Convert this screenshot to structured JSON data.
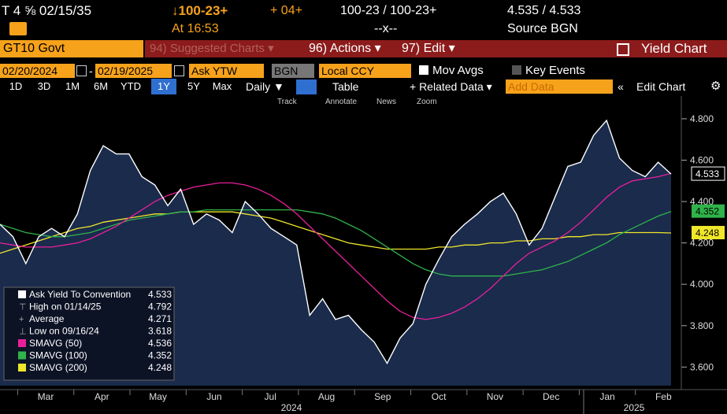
{
  "header": {
    "ticker": "T 4 ⅝ 02/15/35",
    "price_change": "↓100-23+",
    "change": "+ 04+",
    "bid_ask": "100-23 / 100-23+",
    "yield": "4.535 / 4.533",
    "time": "At 16:53",
    "spread": "--x--",
    "source": "Source BGN"
  },
  "toolbar": {
    "security": "GT10 Govt",
    "suggested": "94) Suggested Charts ▾",
    "actions": "96) Actions ▾",
    "edit": "97) Edit ▾",
    "chart_name": "Yield Chart"
  },
  "controls": {
    "start_date": "02/20/2024",
    "dash": "-",
    "end_date": "02/19/2025",
    "field": "Ask YTW",
    "source": "BGN",
    "currency": "Local CCY",
    "mov_avgs": "Mov Avgs",
    "key_events": "Key Events"
  },
  "ranges": [
    "1D",
    "3D",
    "1M",
    "6M",
    "YTD",
    "1Y",
    "5Y",
    "Max"
  ],
  "selected_range": "1Y",
  "period": "Daily ▼",
  "table": "Table",
  "related": "+ Related Data ▾",
  "add_data": "Add Data",
  "edit_chart": "Edit Chart",
  "tools": [
    "Track",
    "Annotate",
    "News",
    "Zoom"
  ],
  "chart_data": {
    "type": "line",
    "x_labels": [
      "Mar",
      "Apr",
      "May",
      "Jun",
      "Jul",
      "Aug",
      "Sep",
      "Oct",
      "Nov",
      "Dec",
      "Jan",
      "Feb"
    ],
    "year_labels": [
      "2024",
      "2025"
    ],
    "ylim": [
      3.51,
      4.91
    ],
    "yticks": [
      {
        "value": 3.6,
        "label": "3.600"
      },
      {
        "value": 3.8,
        "label": "3.800"
      },
      {
        "value": 4.0,
        "label": "4.000"
      },
      {
        "value": 4.2,
        "label": "4.200"
      },
      {
        "value": 4.4,
        "label": "4.400"
      },
      {
        "value": 4.6,
        "label": "4.600"
      },
      {
        "value": 4.8,
        "label": "4.800"
      }
    ],
    "series": [
      {
        "name": "Ask Yield To Convention",
        "color": "#ffffff",
        "fill": "#1a2b4c",
        "values": [
          4.29,
          4.23,
          4.1,
          4.23,
          4.27,
          4.23,
          4.34,
          4.55,
          4.67,
          4.63,
          4.63,
          4.52,
          4.48,
          4.38,
          4.46,
          4.29,
          4.34,
          4.31,
          4.25,
          4.4,
          4.34,
          4.27,
          4.23,
          4.19,
          3.85,
          3.93,
          3.83,
          3.85,
          3.78,
          3.72,
          3.618,
          3.74,
          3.81,
          4.0,
          4.12,
          4.23,
          4.29,
          4.34,
          4.4,
          4.44,
          4.34,
          4.19,
          4.27,
          4.42,
          4.57,
          4.59,
          4.72,
          4.792,
          4.61,
          4.55,
          4.52,
          4.59,
          4.533
        ]
      },
      {
        "name": "SMAVG (50)",
        "color": "#e8209a",
        "values": [
          4.2,
          4.19,
          4.18,
          4.18,
          4.18,
          4.19,
          4.2,
          4.22,
          4.25,
          4.28,
          4.32,
          4.36,
          4.4,
          4.43,
          4.45,
          4.47,
          4.48,
          4.49,
          4.49,
          4.48,
          4.46,
          4.43,
          4.39,
          4.34,
          4.28,
          4.22,
          4.16,
          4.1,
          4.04,
          3.98,
          3.92,
          3.87,
          3.84,
          3.83,
          3.84,
          3.86,
          3.89,
          3.93,
          3.98,
          4.04,
          4.1,
          4.15,
          4.18,
          4.21,
          4.25,
          4.3,
          4.36,
          4.42,
          4.47,
          4.5,
          4.51,
          4.52,
          4.536
        ]
      },
      {
        "name": "SMAVG (100)",
        "color": "#2fb34a",
        "tag": true,
        "values": [
          4.29,
          4.27,
          4.25,
          4.24,
          4.23,
          4.23,
          4.24,
          4.25,
          4.27,
          4.29,
          4.31,
          4.32,
          4.33,
          4.34,
          4.35,
          4.35,
          4.36,
          4.36,
          4.36,
          4.36,
          4.36,
          4.36,
          4.36,
          4.36,
          4.35,
          4.34,
          4.32,
          4.29,
          4.26,
          4.22,
          4.18,
          4.14,
          4.1,
          4.07,
          4.05,
          4.04,
          4.04,
          4.04,
          4.04,
          4.04,
          4.05,
          4.06,
          4.07,
          4.09,
          4.11,
          4.14,
          4.17,
          4.2,
          4.24,
          4.27,
          4.3,
          4.33,
          4.352
        ]
      },
      {
        "name": "SMAVG (200)",
        "color": "#f0e62a",
        "tag": true,
        "values": [
          4.15,
          4.17,
          4.19,
          4.21,
          4.23,
          4.25,
          4.27,
          4.28,
          4.3,
          4.31,
          4.32,
          4.33,
          4.34,
          4.34,
          4.35,
          4.35,
          4.35,
          4.35,
          4.35,
          4.34,
          4.33,
          4.32,
          4.3,
          4.28,
          4.26,
          4.24,
          4.22,
          4.2,
          4.19,
          4.18,
          4.17,
          4.17,
          4.17,
          4.17,
          4.18,
          4.18,
          4.19,
          4.19,
          4.2,
          4.2,
          4.21,
          4.21,
          4.22,
          4.22,
          4.23,
          4.23,
          4.24,
          4.24,
          4.25,
          4.25,
          4.25,
          4.25,
          4.248
        ]
      }
    ],
    "stats": [
      {
        "label": "High on 01/14/25",
        "value": 4.792
      },
      {
        "label": "Average",
        "value": 4.271
      },
      {
        "label": "Low on 09/16/24",
        "value": 3.618
      }
    ]
  }
}
